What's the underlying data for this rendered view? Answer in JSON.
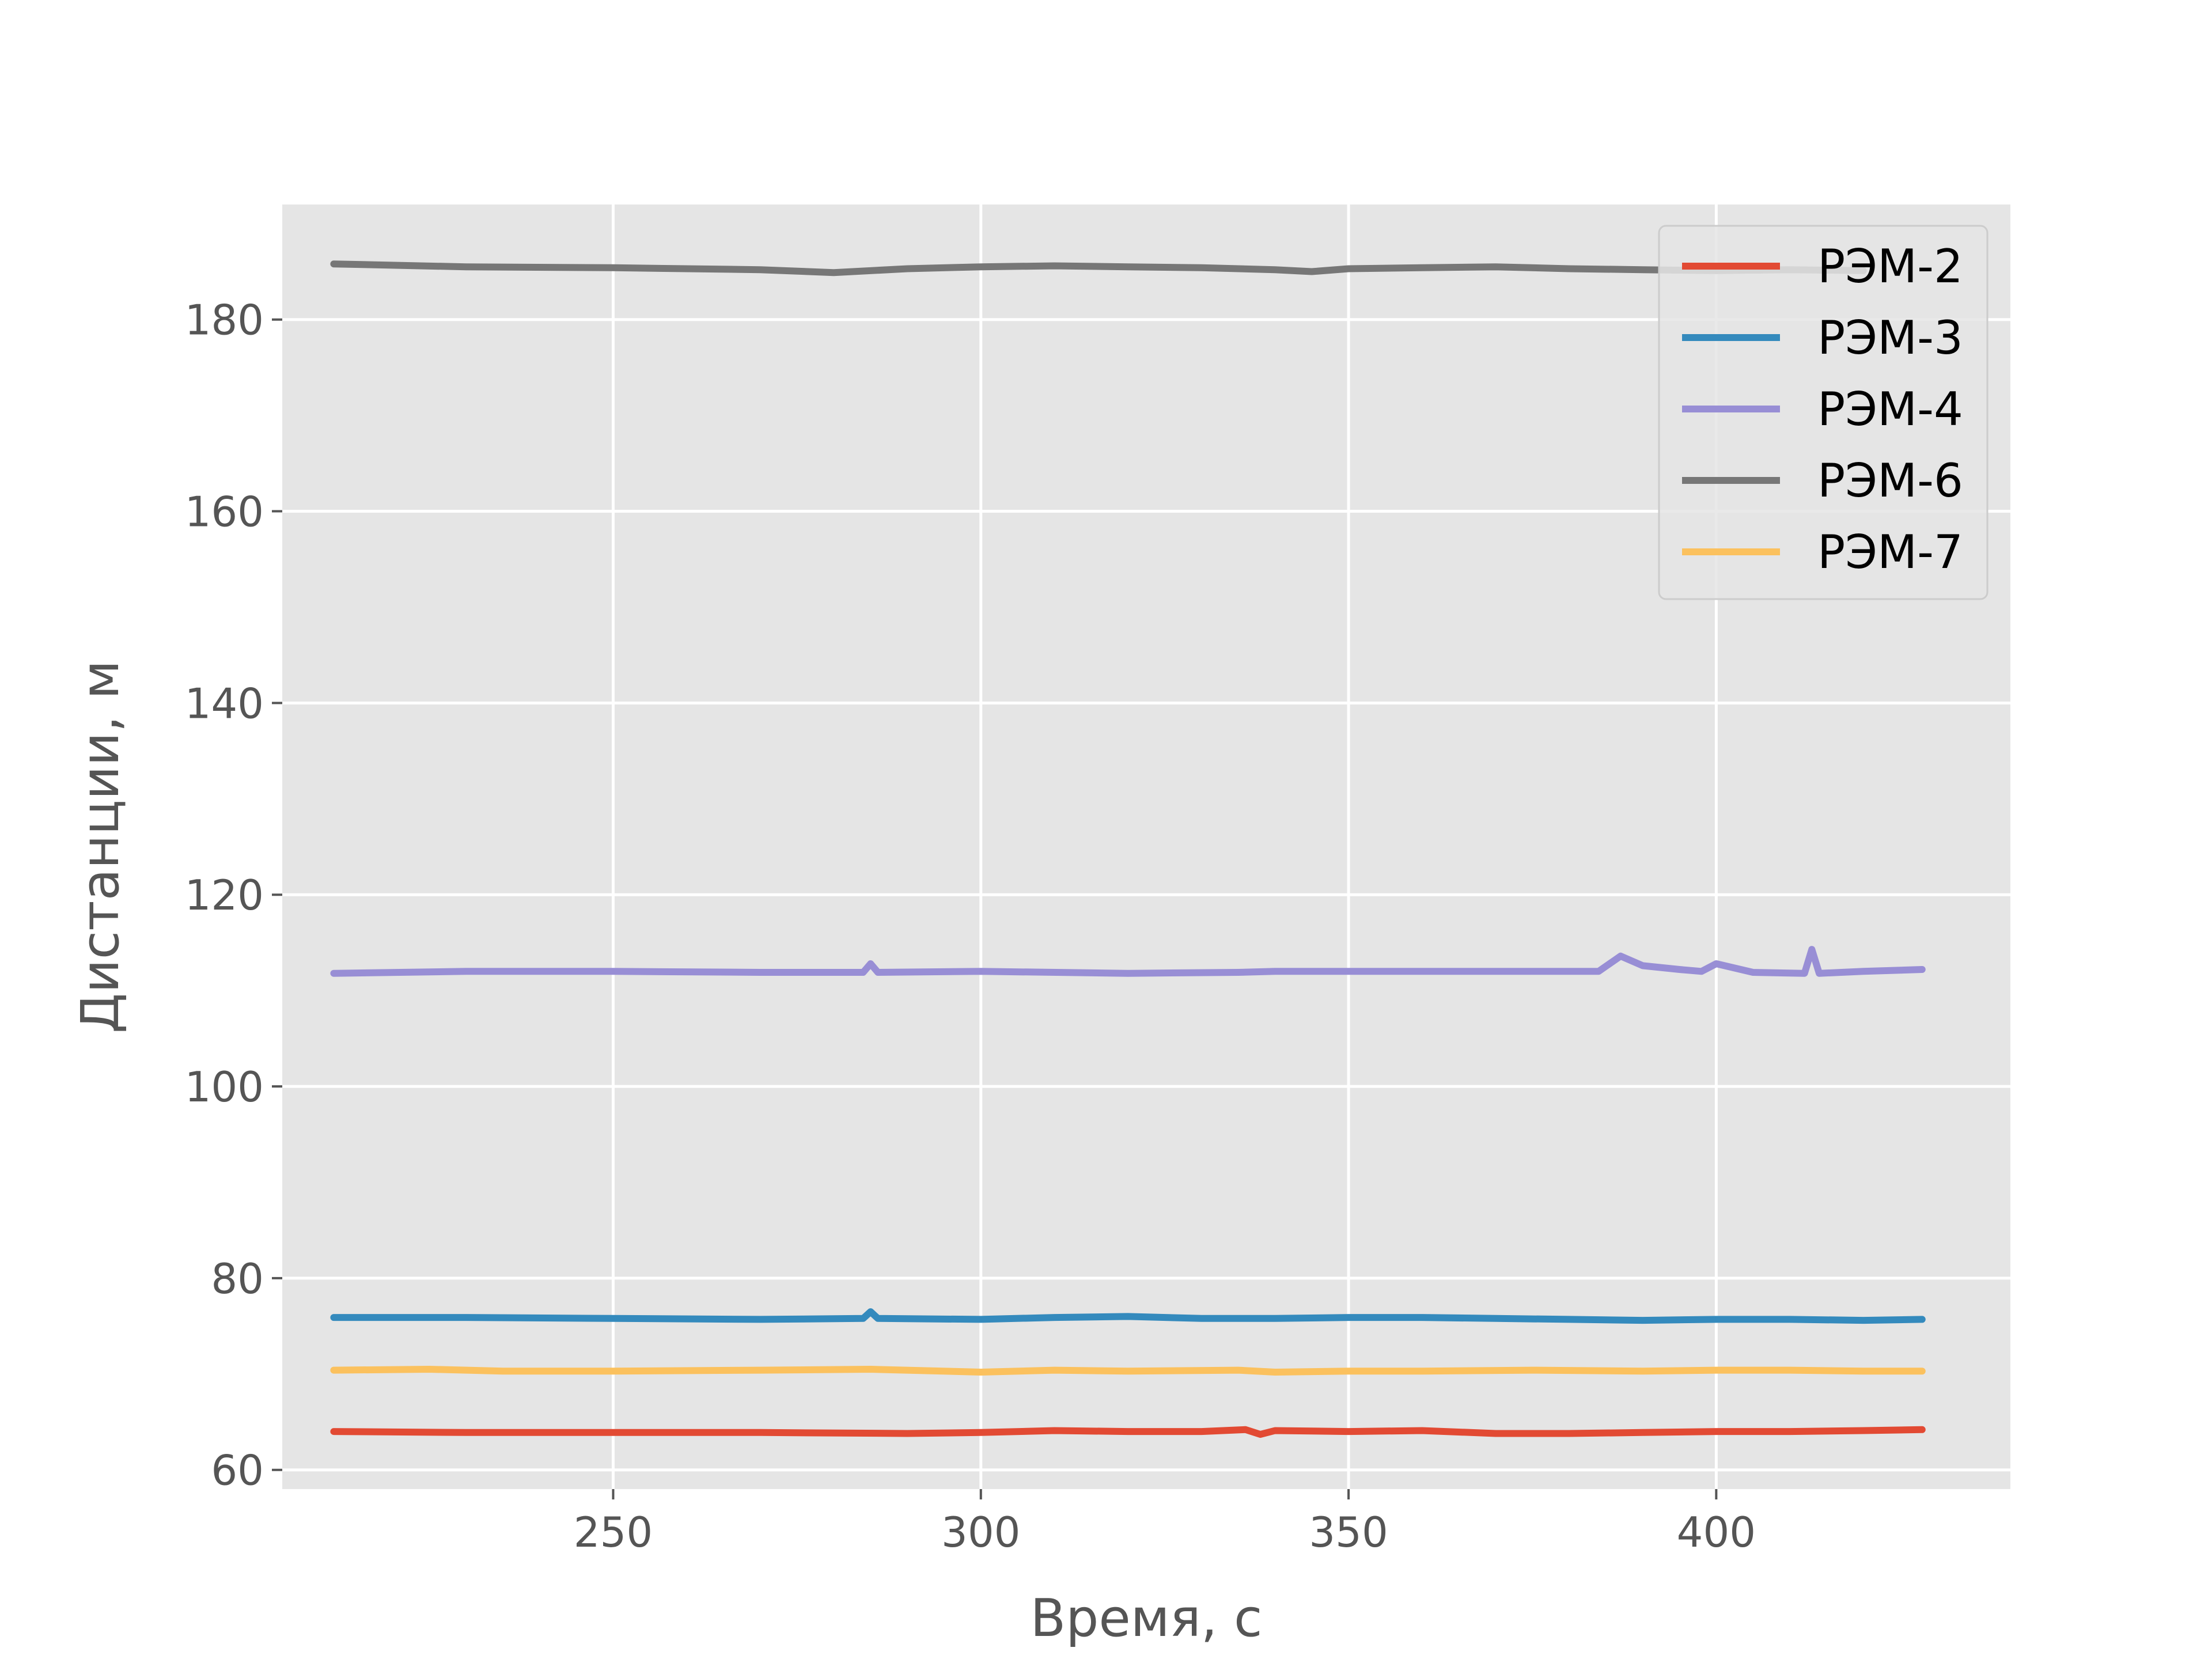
{
  "chart_data": {
    "type": "line",
    "title": "",
    "xlabel": "Время, с",
    "ylabel": "Дистанции, м",
    "xlim": [
      205,
      440
    ],
    "ylim": [
      58,
      192
    ],
    "xticks": [
      250,
      300,
      350,
      400
    ],
    "yticks": [
      60,
      80,
      100,
      120,
      140,
      160,
      180
    ],
    "grid": true,
    "legend_position": "top-right",
    "background": "#e5e5e5",
    "series": [
      {
        "name": "РЭМ-2",
        "color": "#e24a33",
        "x": [
          212,
          230,
          250,
          270,
          290,
          300,
          310,
          320,
          330,
          336,
          338,
          340,
          350,
          360,
          370,
          380,
          390,
          400,
          410,
          420,
          428
        ],
        "y": [
          64.0,
          63.9,
          63.9,
          63.9,
          63.8,
          63.9,
          64.1,
          64.0,
          64.0,
          64.2,
          63.7,
          64.1,
          64.0,
          64.1,
          63.8,
          63.8,
          63.9,
          64.0,
          64.0,
          64.1,
          64.2
        ]
      },
      {
        "name": "РЭМ-3",
        "color": "#348abd",
        "x": [
          212,
          230,
          250,
          270,
          284,
          285,
          286,
          300,
          310,
          320,
          330,
          340,
          350,
          360,
          370,
          380,
          390,
          400,
          410,
          420,
          428
        ],
        "y": [
          75.9,
          75.9,
          75.8,
          75.7,
          75.8,
          76.5,
          75.8,
          75.7,
          75.9,
          76.0,
          75.8,
          75.8,
          75.9,
          75.9,
          75.8,
          75.7,
          75.6,
          75.7,
          75.7,
          75.6,
          75.7
        ]
      },
      {
        "name": "РЭМ-4",
        "color": "#988ed5",
        "x": [
          212,
          230,
          250,
          270,
          284,
          285,
          286,
          300,
          320,
          335,
          340,
          350,
          370,
          384,
          387,
          390,
          395,
          398,
          400,
          405,
          412,
          413,
          414,
          420,
          428
        ],
        "y": [
          111.8,
          112.0,
          112.0,
          111.9,
          111.9,
          112.8,
          111.9,
          112.0,
          111.8,
          111.9,
          112.0,
          112.0,
          112.0,
          112.0,
          113.6,
          112.6,
          112.2,
          112.0,
          112.8,
          111.9,
          111.8,
          114.3,
          111.8,
          112.0,
          112.2
        ]
      },
      {
        "name": "РЭМ-6",
        "color": "#777777",
        "x": [
          212,
          230,
          250,
          260,
          270,
          280,
          290,
          300,
          310,
          320,
          330,
          340,
          345,
          350,
          360,
          370,
          380,
          390,
          400,
          410,
          420
        ],
        "y": [
          185.8,
          185.5,
          185.4,
          185.3,
          185.2,
          184.9,
          185.3,
          185.5,
          185.6,
          185.5,
          185.4,
          185.2,
          185.0,
          185.3,
          185.4,
          185.5,
          185.3,
          185.2,
          185.1,
          185.2,
          185.1
        ]
      },
      {
        "name": "РЭМ-7",
        "color": "#fbc15e",
        "x": [
          212,
          225,
          235,
          250,
          270,
          285,
          300,
          310,
          320,
          335,
          340,
          350,
          360,
          375,
          390,
          400,
          410,
          420,
          428
        ],
        "y": [
          70.4,
          70.5,
          70.3,
          70.3,
          70.4,
          70.5,
          70.2,
          70.4,
          70.3,
          70.4,
          70.2,
          70.3,
          70.3,
          70.4,
          70.3,
          70.4,
          70.4,
          70.3,
          70.3
        ]
      }
    ]
  }
}
